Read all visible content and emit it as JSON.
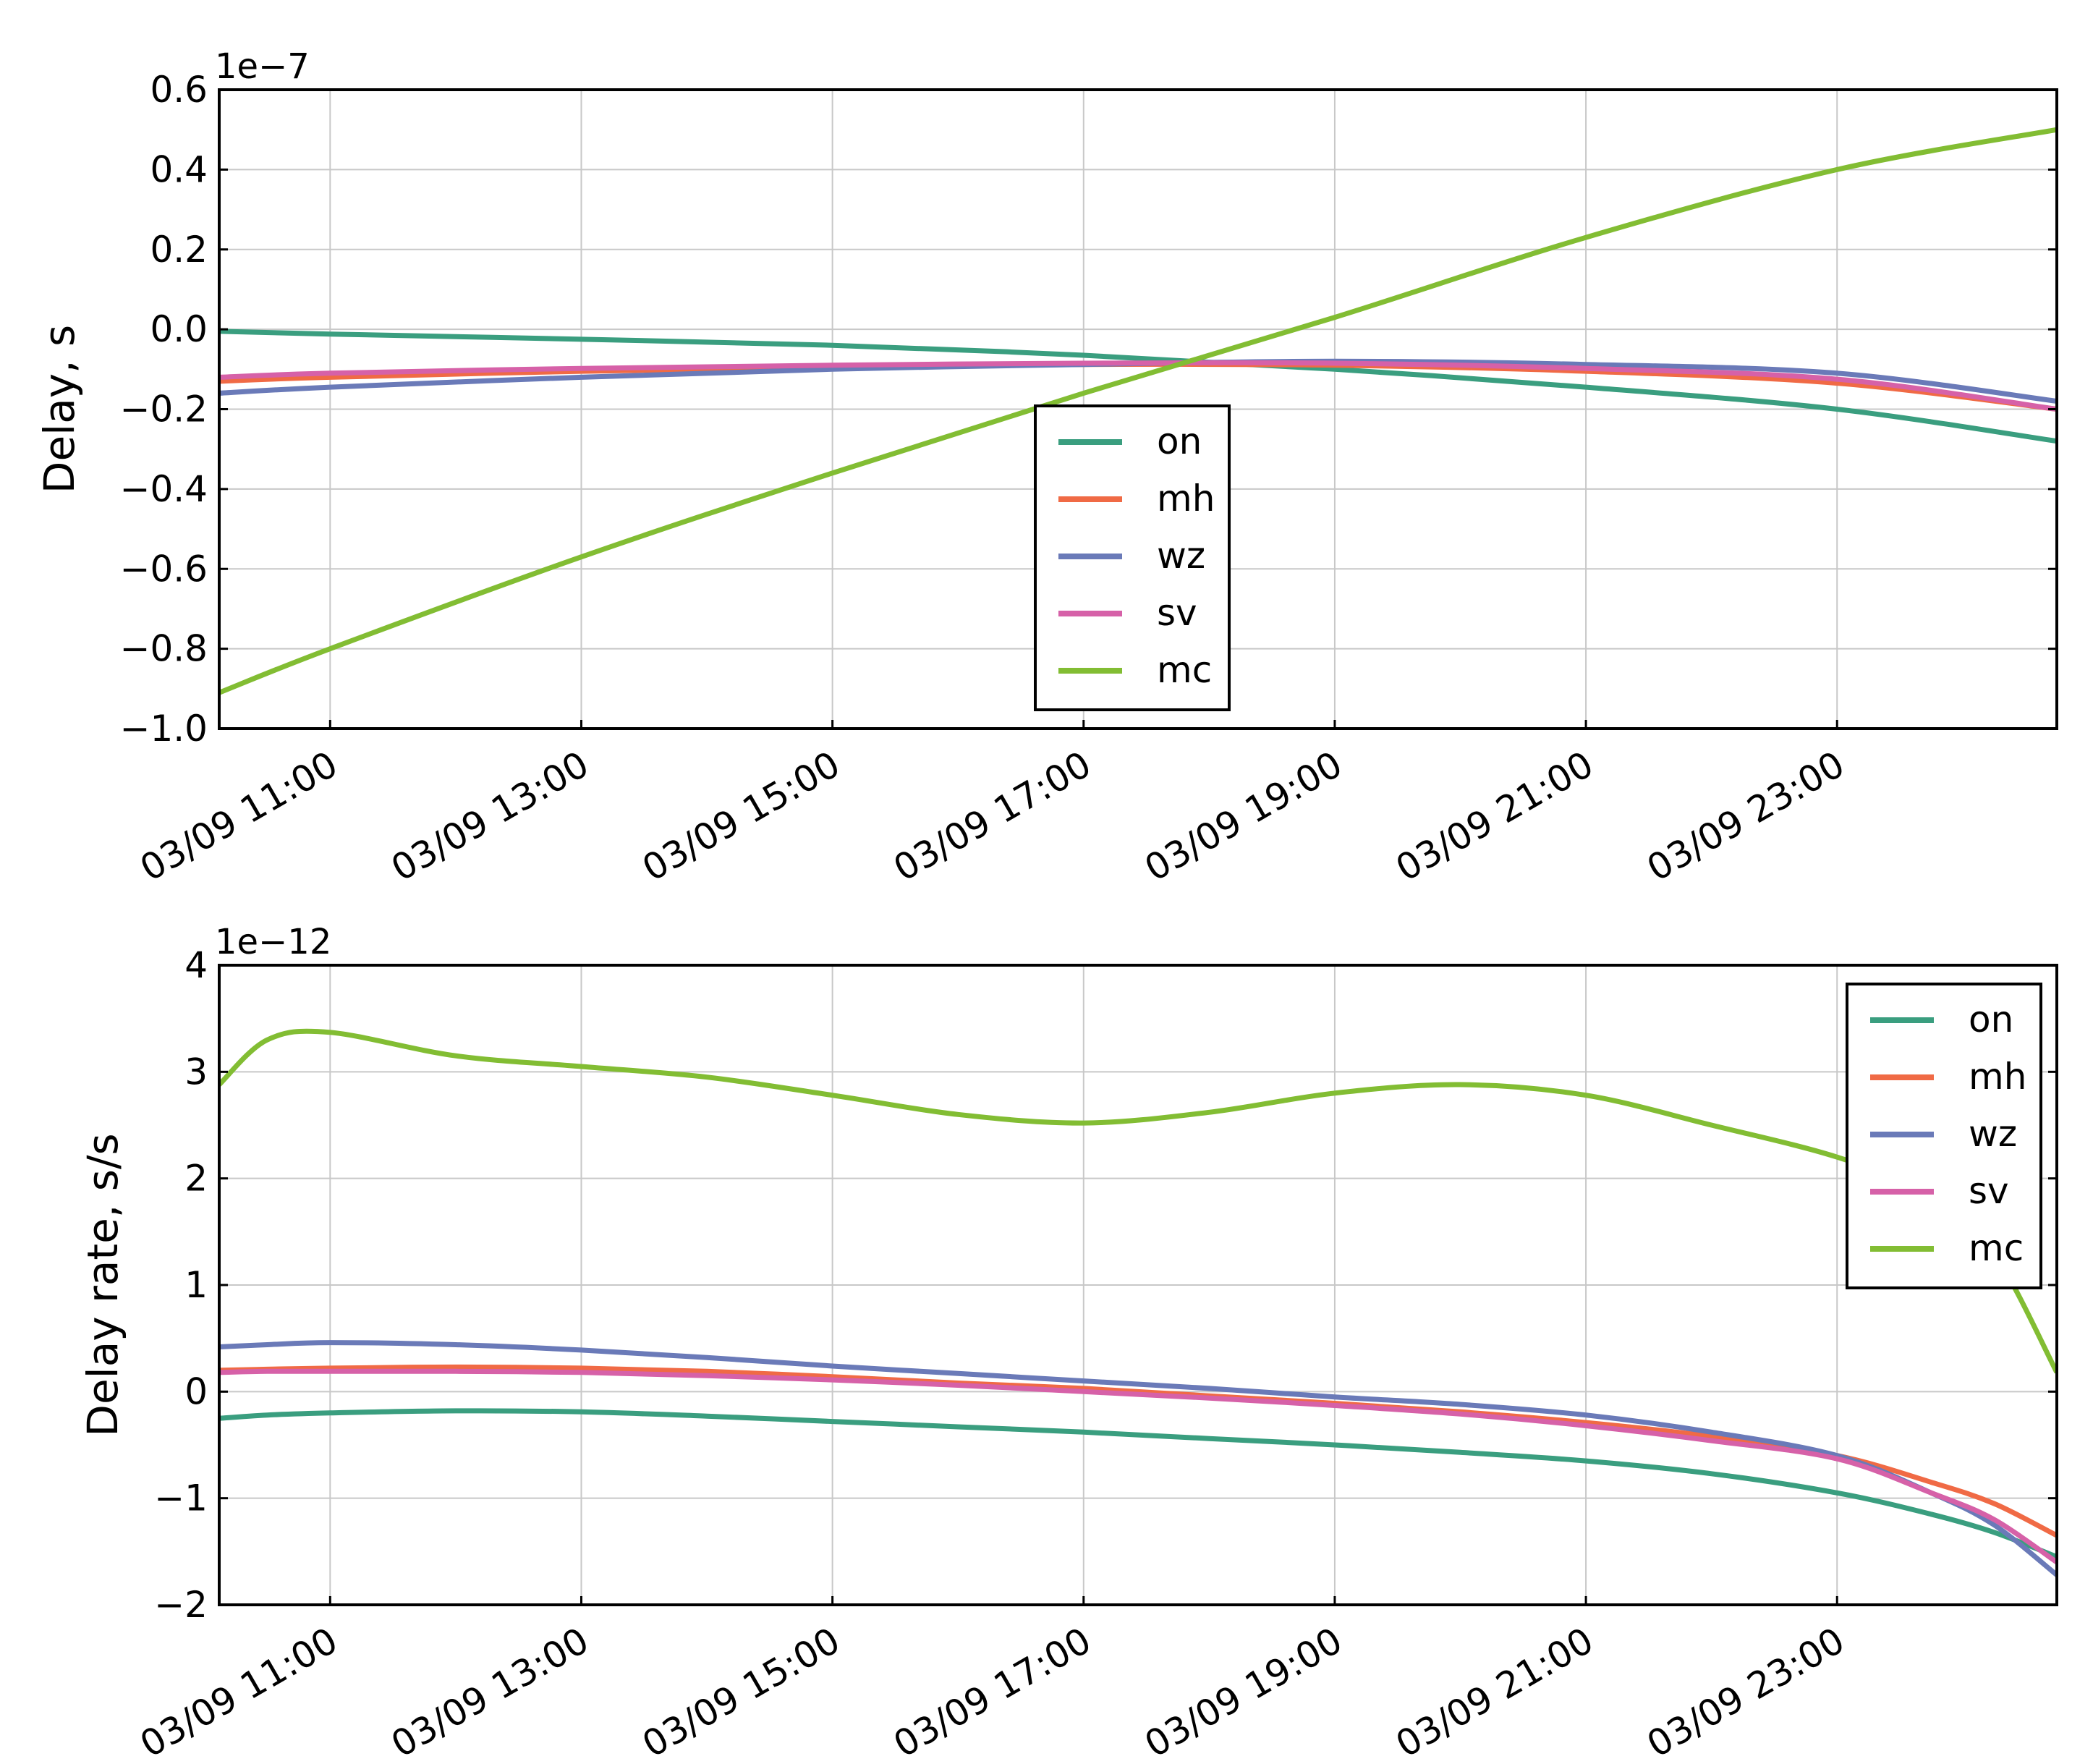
{
  "colors": {
    "on": "#3a9e7f",
    "mh": "#f06a45",
    "wz": "#6a7ab8",
    "sv": "#d661a8",
    "mc": "#82bd33",
    "grid": "#c8c8c8"
  },
  "chart_data": [
    {
      "type": "line",
      "title": "",
      "xlabel": "",
      "ylabel": "Delay, s",
      "offset_label": "1e−7",
      "xlim": [
        "03/09 10:07",
        "03/10 00:45"
      ],
      "ylim": [
        -1.0,
        0.6
      ],
      "grid": true,
      "legend_position": "lower-center",
      "x_ticks": [
        "03/09 11:00",
        "03/09 13:00",
        "03/09 15:00",
        "03/09 17:00",
        "03/09 19:00",
        "03/09 21:00",
        "03/09 23:00"
      ],
      "y_ticks": [
        "−1.0",
        "−0.8",
        "−0.6",
        "−0.4",
        "−0.2",
        "0.0",
        "0.2",
        "0.4",
        "0.6"
      ],
      "y_tick_values": [
        -1.0,
        -0.8,
        -0.6,
        -0.4,
        -0.2,
        0.0,
        0.2,
        0.4,
        0.6
      ],
      "x": [
        "03/09 10:07",
        "03/09 11:00",
        "03/09 13:00",
        "03/09 15:00",
        "03/09 17:00",
        "03/09 19:00",
        "03/09 21:00",
        "03/09 23:00",
        "03/10 00:45"
      ],
      "series": [
        {
          "name": "on",
          "values": [
            -0.005,
            -0.012,
            -0.025,
            -0.04,
            -0.065,
            -0.1,
            -0.145,
            -0.2,
            -0.28
          ]
        },
        {
          "name": "mh",
          "values": [
            -0.13,
            -0.12,
            -0.105,
            -0.095,
            -0.088,
            -0.09,
            -0.105,
            -0.135,
            -0.2
          ]
        },
        {
          "name": "wz",
          "values": [
            -0.16,
            -0.145,
            -0.12,
            -0.1,
            -0.088,
            -0.08,
            -0.088,
            -0.11,
            -0.18
          ]
        },
        {
          "name": "sv",
          "values": [
            -0.12,
            -0.11,
            -0.098,
            -0.09,
            -0.085,
            -0.085,
            -0.098,
            -0.125,
            -0.2
          ]
        },
        {
          "name": "mc",
          "values": [
            -0.91,
            -0.8,
            -0.57,
            -0.36,
            -0.16,
            0.03,
            0.23,
            0.4,
            0.5
          ]
        }
      ]
    },
    {
      "type": "line",
      "title": "",
      "xlabel": "",
      "ylabel": "Delay rate, s/s",
      "offset_label": "1e−12",
      "xlim": [
        "03/09 10:07",
        "03/10 00:45"
      ],
      "ylim": [
        -2,
        4
      ],
      "grid": true,
      "legend_position": "upper-right",
      "x_ticks": [
        "03/09 11:00",
        "03/09 13:00",
        "03/09 15:00",
        "03/09 17:00",
        "03/09 19:00",
        "03/09 21:00",
        "03/09 23:00"
      ],
      "y_ticks": [
        "−2",
        "−1",
        "0",
        "1",
        "2",
        "3",
        "4"
      ],
      "y_tick_values": [
        -2,
        -1,
        0,
        1,
        2,
        3,
        4
      ],
      "x": [
        "03/09 10:07",
        "03/09 10:30",
        "03/09 11:00",
        "03/09 12:00",
        "03/09 13:00",
        "03/09 14:00",
        "03/09 15:00",
        "03/09 16:00",
        "03/09 17:00",
        "03/09 18:00",
        "03/09 19:00",
        "03/09 20:00",
        "03/09 21:00",
        "03/09 22:00",
        "03/09 23:00",
        "03/09 23:45",
        "03/10 00:15",
        "03/10 00:45"
      ],
      "series": [
        {
          "name": "on",
          "values": [
            -0.25,
            -0.22,
            -0.2,
            -0.18,
            -0.19,
            -0.23,
            -0.28,
            -0.33,
            -0.38,
            -0.44,
            -0.5,
            -0.57,
            -0.65,
            -0.77,
            -0.95,
            -1.15,
            -1.32,
            -1.55
          ]
        },
        {
          "name": "mh",
          "values": [
            0.2,
            0.21,
            0.22,
            0.23,
            0.22,
            0.19,
            0.14,
            0.08,
            0.03,
            -0.04,
            -0.11,
            -0.19,
            -0.29,
            -0.42,
            -0.6,
            -0.85,
            -1.05,
            -1.35
          ]
        },
        {
          "name": "wz",
          "values": [
            0.42,
            0.44,
            0.46,
            0.44,
            0.39,
            0.32,
            0.24,
            0.17,
            0.1,
            0.03,
            -0.05,
            -0.12,
            -0.22,
            -0.38,
            -0.6,
            -0.95,
            -1.25,
            -1.72
          ]
        },
        {
          "name": "sv",
          "values": [
            0.18,
            0.19,
            0.19,
            0.19,
            0.18,
            0.15,
            0.11,
            0.06,
            0.0,
            -0.06,
            -0.13,
            -0.21,
            -0.32,
            -0.46,
            -0.63,
            -0.95,
            -1.2,
            -1.6
          ]
        },
        {
          "name": "mc",
          "values": [
            2.88,
            3.3,
            3.37,
            3.15,
            3.05,
            2.95,
            2.78,
            2.6,
            2.52,
            2.62,
            2.8,
            2.88,
            2.78,
            2.5,
            2.2,
            1.85,
            1.3,
            0.18
          ]
        }
      ]
    }
  ]
}
